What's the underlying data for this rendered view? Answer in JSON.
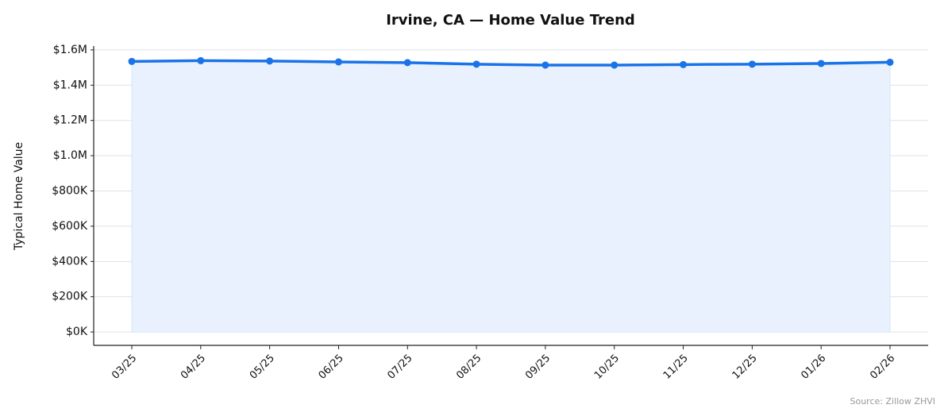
{
  "chart_data": {
    "type": "line",
    "title": "Irvine, CA — Home Value Trend",
    "y_label": "Typical Home Value",
    "source": "Source: Zillow ZHVI",
    "categories": [
      "03/25",
      "04/25",
      "05/25",
      "06/25",
      "07/25",
      "08/25",
      "09/25",
      "10/25",
      "11/25",
      "12/25",
      "01/26",
      "02/26"
    ],
    "series": [
      {
        "name": "Typical Home Value",
        "color": "#1a73e8",
        "values": [
          1535000,
          1539000,
          1537000,
          1532000,
          1528000,
          1519000,
          1514000,
          1514000,
          1517000,
          1519000,
          1523000,
          1530000
        ]
      }
    ],
    "area_fill": "#e8f1fd",
    "ylim": [
      -76000,
      1622000
    ],
    "yticks": [
      {
        "value": 0,
        "label": "$0K"
      },
      {
        "value": 200000,
        "label": "$200K"
      },
      {
        "value": 400000,
        "label": "$400K"
      },
      {
        "value": 600000,
        "label": "$600K"
      },
      {
        "value": 800000,
        "label": "$800K"
      },
      {
        "value": 1000000,
        "label": "$1.0M"
      },
      {
        "value": 1200000,
        "label": "$1.2M"
      },
      {
        "value": 1400000,
        "label": "$1.4M"
      },
      {
        "value": 1600000,
        "label": "$1.6M"
      }
    ],
    "grid": true
  }
}
